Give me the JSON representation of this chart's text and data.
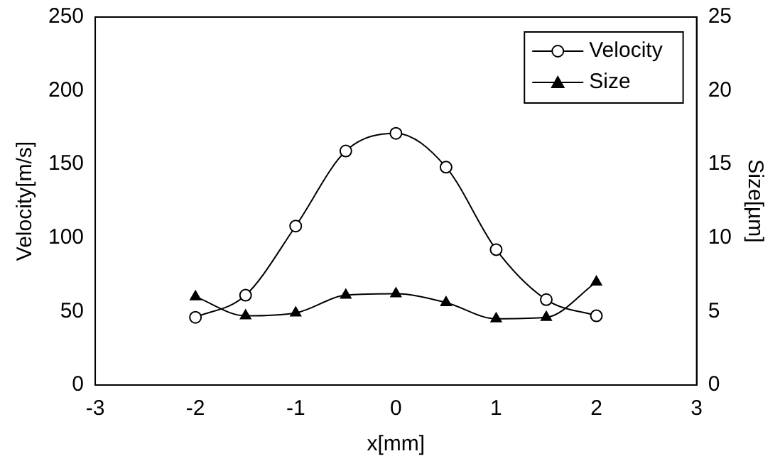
{
  "chart_data": {
    "type": "line",
    "xlabel": "x[mm]",
    "ylabel": "Velocity[m/s]",
    "y2label": "Size[µm]",
    "x": [
      -2,
      -1.5,
      -1,
      -0.5,
      0,
      0.5,
      1,
      1.5,
      2
    ],
    "series": [
      {
        "name": "Velocity",
        "color": "#000000",
        "marker": "circle",
        "values": [
          46,
          61,
          108,
          159,
          171,
          148,
          92,
          58,
          47
        ]
      },
      {
        "name": "Size",
        "color": "#000000",
        "marker": "triangle",
        "axis": "y2",
        "values": [
          6.0,
          4.7,
          4.9,
          6.1,
          6.2,
          5.6,
          4.5,
          4.6,
          7.0
        ]
      }
    ],
    "xlim": [
      -3,
      3
    ],
    "xticks": [
      -3,
      -2,
      -1,
      0,
      1,
      2,
      3
    ],
    "ylim": [
      0,
      250
    ],
    "yticks": [
      0,
      50,
      100,
      150,
      200,
      250
    ],
    "y2lim": [
      0,
      25
    ],
    "y2ticks": [
      0,
      5,
      10,
      15,
      20,
      25
    ],
    "grid": false,
    "legend": "top right",
    "line_style": "solid"
  }
}
